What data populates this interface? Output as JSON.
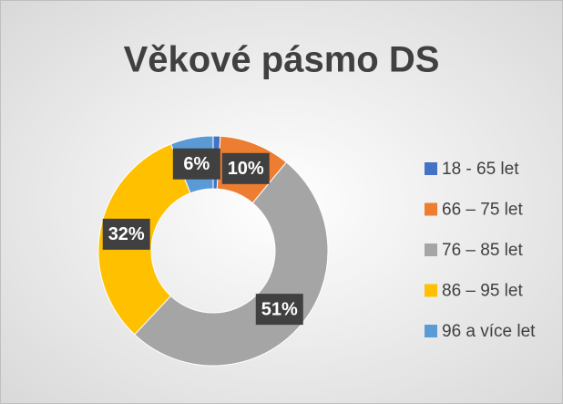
{
  "chart_data": {
    "type": "donut",
    "title": "Věkové pásmo DS",
    "categories": [
      "18 - 65 let",
      "66 – 75 let",
      "76 – 85 let",
      "86 – 95 let",
      "96 a více let"
    ],
    "values": [
      1,
      10,
      51,
      32,
      6
    ],
    "value_labels": [
      null,
      "10%",
      "51%",
      "32%",
      "6%"
    ],
    "colors": [
      "#4472c4",
      "#ed7d31",
      "#a5a5a5",
      "#ffc000",
      "#5b9bd5"
    ],
    "legend": "right"
  }
}
